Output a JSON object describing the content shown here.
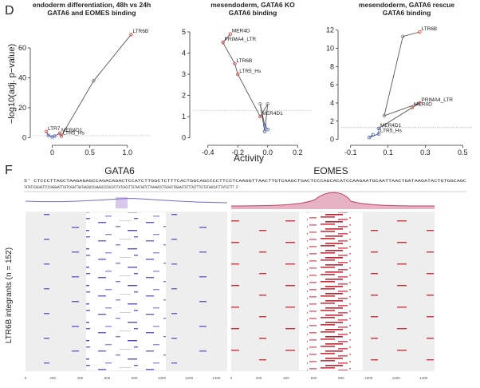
{
  "panel_labels": [
    "D",
    "F"
  ],
  "y_label": "−log10(adj. p−value)",
  "x_label": "Activity",
  "chart_data": [
    {
      "type": "line",
      "title": "endoderm differentiation, 48h vs 24h",
      "subtitle": "GATA6 and EOMES binding",
      "x": [
        -0.08,
        -0.05,
        0.0,
        0.03,
        0.1,
        0.12,
        0.55,
        1.05
      ],
      "y": [
        4,
        1.5,
        0.5,
        1,
        3,
        1,
        38,
        69
      ],
      "point_labels": [
        "LTR7",
        null,
        null,
        null,
        "MER4D1",
        "LTR5_Hs",
        null,
        "LTR6B"
      ],
      "point_colors": [
        "#e0504a",
        "#5a6fd6",
        "#5a6fd6",
        "#5a6fd6",
        "#e0504a",
        "#e0504a",
        "#888888",
        "#e0504a"
      ],
      "line_color": "#555555",
      "threshold": 1.3,
      "xlim": [
        -0.25,
        1.3
      ],
      "xticks": [
        0,
        0.5,
        {
          "value": 1,
          "label": "1.0"
        }
      ],
      "ylim": [
        -3,
        75
      ],
      "yticks": [
        0,
        20,
        40,
        60
      ]
    },
    {
      "type": "line",
      "title": "mesendoderm, GATA6 KO",
      "subtitle": "GATA6 binding",
      "x": [
        -0.25,
        -0.3,
        -0.22,
        -0.2,
        -0.05,
        0.0,
        -0.02,
        -0.05,
        -0.02,
        0.0
      ],
      "y": [
        4.9,
        4.5,
        3.5,
        3.0,
        1.0,
        1.6,
        0.3,
        1.6,
        0.6,
        0.4
      ],
      "point_labels": [
        "MER4D",
        "PRIMA4_LTR",
        "LTR6B",
        "LTR5_Hs",
        "MER4D1",
        null,
        null,
        null,
        null,
        null
      ],
      "point_colors": [
        "#e0504a",
        "#e0504a",
        "#e0504a",
        "#e0504a",
        "#e0504a",
        "#888888",
        "#5a6fd6",
        "#888888",
        "#5a6fd6",
        "#5a6fd6"
      ],
      "line_color": "#555555",
      "threshold": 1.3,
      "xlim": [
        -0.5,
        0.3
      ],
      "xticks": [
        -0.4,
        -0.2,
        {
          "value": 0,
          "label": "0.0"
        },
        0.2
      ],
      "ylim": [
        -0.2,
        5.3
      ],
      "yticks": [
        0,
        1,
        2,
        3,
        4,
        5
      ]
    },
    {
      "type": "line",
      "title": "mesendoderm, GATA6 rescue",
      "subtitle": "GATA6 binding",
      "x": [
        0.27,
        0.18,
        0.08,
        0.27,
        0.23,
        0.05,
        0.05,
        0.0,
        0.02
      ],
      "y": [
        11.8,
        11.3,
        2.6,
        4.0,
        3.5,
        1.2,
        0.6,
        0.2,
        0.5
      ],
      "point_labels": [
        "LTR6B",
        null,
        null,
        "PRIMA4_LTR",
        "MER4D",
        "MER4D1",
        "LTR5_Hs",
        null,
        null
      ],
      "point_colors": [
        "#e0504a",
        "#888888",
        "#888888",
        "#e0504a",
        "#e0504a",
        "#5a6fd6",
        "#5a6fd6",
        "#5a6fd6",
        "#5a6fd6"
      ],
      "line_color": "#555555",
      "threshold": 1.3,
      "xlim": [
        -0.15,
        0.55
      ],
      "xticks": [
        -0.1,
        0.1,
        0.3,
        0.5
      ],
      "ylim": [
        -0.3,
        12.5
      ],
      "yticks": [
        0,
        2,
        4,
        6,
        8,
        10,
        12
      ]
    }
  ],
  "panel_f": {
    "left_title": "GATA6",
    "right_title": "EOMES",
    "y_label": "LTR6B integrants (n = 152)",
    "sequence": [
      "5' CTCCCTTAGCTAAGAGAGCCAGACAGACTCCATCTTGGCTCTTTCACTGGCAGCCCCTTCCTCAAGGTTAACTTGTCAAGCTGACTCCCAGCACATCCAAGAATGCAATTAACTGATAAGATACTGTGGCAGC",
      "TATATCCGCAGTTCCCAGGAATTCGTCXGATTGATAACGCCCAAAGCCCCGCGTCTATCACCTTGTAATAGTCTTAAAGCCCTGCACCTGGAACTGTTTACTTTCCTGTAACCATTTATCCTTT 3'"
    ],
    "xticks": [
      0,
      200,
      400,
      600,
      800,
      1000,
      1200,
      1400
    ]
  }
}
